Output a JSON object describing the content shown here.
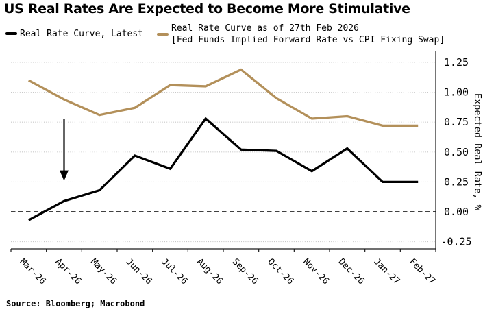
{
  "title": "US Real Rates Are Expected to Become More Stimulative",
  "source": "Source: Bloomberg; Macrobond",
  "legend": {
    "position": "top",
    "items": [
      {
        "label": "Real Rate Curve, Latest",
        "color": "#000000"
      },
      {
        "label_line1": "Real Rate Curve as of 27th Feb 2026",
        "label_line2": "[Fed Funds Implied Forward Rate vs CPI Fixing Swap]",
        "color": "#b3905a"
      }
    ]
  },
  "chart_data": {
    "type": "line",
    "categories": [
      "Mar-26",
      "Apr-26",
      "May-26",
      "Jun-26",
      "Jul-26",
      "Aug-26",
      "Sep-26",
      "Oct-26",
      "Nov-26",
      "Dec-26",
      "Jan-27",
      "Feb-27"
    ],
    "series": [
      {
        "name": "Real Rate Curve, Latest",
        "color": "#000000",
        "values": [
          -0.07,
          0.09,
          0.18,
          0.47,
          0.36,
          0.78,
          0.52,
          0.51,
          0.34,
          0.53,
          0.25,
          0.25
        ]
      },
      {
        "name": "Real Rate Curve as of 27th Feb 2026 [Fed Funds Implied Forward Rate vs CPI Fixing Swap]",
        "color": "#b3905a",
        "values": [
          1.1,
          0.94,
          0.81,
          0.87,
          1.06,
          1.05,
          1.19,
          0.95,
          0.78,
          0.8,
          0.72,
          0.72
        ]
      }
    ],
    "xlabel": "",
    "ylabel": "Expected Real Rate, %",
    "ylim": [
      -0.31,
      1.28
    ],
    "yticks": [
      {
        "value": 1.25,
        "label": "1.25"
      },
      {
        "value": 1.0,
        "label": "1.00"
      },
      {
        "value": 0.75,
        "label": "0.75"
      },
      {
        "value": 0.5,
        "label": "0.50"
      },
      {
        "value": 0.25,
        "label": "0.25"
      },
      {
        "value": 0.0,
        "label": "0.00"
      },
      {
        "value": -0.25,
        "label": "-0.25"
      }
    ],
    "grid": "dotted-horizontal",
    "zero_line_style": "black-dashed",
    "y_axis_side": "right",
    "annotations": [
      {
        "type": "down-arrow",
        "category": "Apr-26",
        "from_value": 0.78,
        "to_value": 0.26
      }
    ]
  },
  "colors": {
    "background": "#ffffff",
    "line_black": "#000000",
    "line_tan": "#b3905a",
    "grid": "#c7c7c7",
    "axis": "#1a1a1a"
  }
}
